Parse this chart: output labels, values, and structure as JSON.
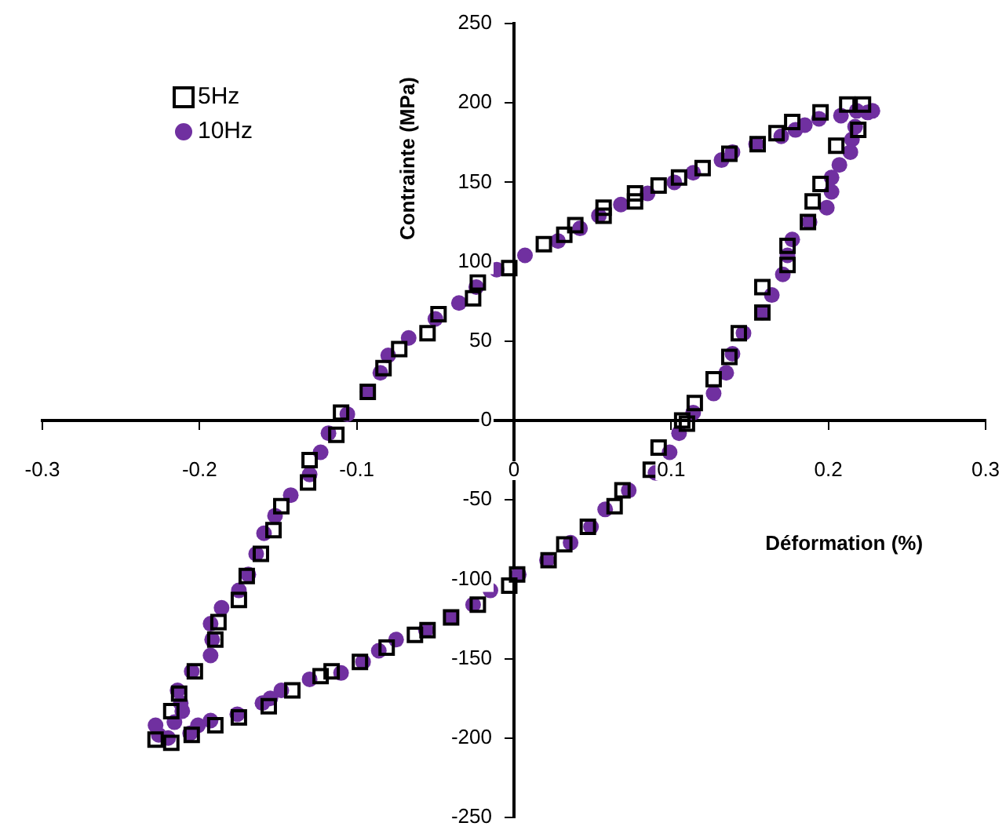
{
  "chart_data": {
    "type": "scatter",
    "xlabel": "Déformation (%)",
    "ylabel": "Contrainte (MPa)",
    "xlim": [
      -0.3,
      0.3
    ],
    "xticks": [
      -0.3,
      -0.2,
      -0.1,
      0,
      0.1,
      0.2,
      0.3
    ],
    "ylim": [
      -250,
      250
    ],
    "yticks": [
      -250,
      -200,
      -150,
      -100,
      -50,
      0,
      50,
      100,
      150,
      200,
      250
    ],
    "grid": false,
    "legend": "top left",
    "series": [
      {
        "name": "5Hz",
        "color": "#000000",
        "marker": "square",
        "x": [
          0.205,
          0.195,
          0.19,
          0.187,
          0.174,
          0.174,
          0.158,
          0.158,
          0.143,
          0.137,
          0.127,
          0.115,
          0.107,
          0.11,
          0.092,
          0.087,
          0.069,
          0.064,
          0.047,
          0.032,
          0.022,
          0.002,
          -0.003,
          -0.023,
          -0.04,
          -0.055,
          -0.063,
          -0.081,
          -0.098,
          -0.116,
          -0.123,
          -0.141,
          -0.156,
          -0.175,
          -0.19,
          -0.205,
          -0.218,
          -0.228,
          -0.218,
          -0.213,
          -0.203,
          -0.19,
          -0.188,
          -0.175,
          -0.17,
          -0.161,
          -0.153,
          -0.148,
          -0.131,
          -0.13,
          -0.113,
          -0.11,
          -0.093,
          -0.083,
          -0.073,
          -0.055,
          -0.048,
          -0.026,
          -0.023,
          -0.003,
          0.019,
          0.032,
          0.039,
          0.057,
          0.057,
          0.077,
          0.077,
          0.092,
          0.105,
          0.12,
          0.137,
          0.155,
          0.167,
          0.177,
          0.195,
          0.212,
          0.222,
          0.219
        ],
        "values": [
          173,
          149,
          138,
          125,
          110,
          98,
          84,
          68,
          55,
          40,
          26,
          11,
          0,
          -2,
          -17,
          -31,
          -44,
          -54,
          -67,
          -78,
          -88,
          -97,
          -104,
          -116,
          -124,
          -132,
          -135,
          -143,
          -152,
          -158,
          -161,
          -170,
          -180,
          -187,
          -192,
          -198,
          -203,
          -201,
          -183,
          -172,
          -158,
          -138,
          -127,
          -113,
          -98,
          -84,
          -69,
          -54,
          -39,
          -25,
          -9,
          5,
          18,
          33,
          45,
          55,
          67,
          77,
          87,
          96,
          111,
          117,
          123,
          129,
          134,
          138,
          143,
          148,
          153,
          159,
          168,
          174,
          181,
          188,
          194,
          199,
          199,
          183
        ]
      },
      {
        "name": "10Hz",
        "color": "#7030a0",
        "marker": "circle",
        "x": [
          0.225,
          0.217,
          0.215,
          0.214,
          0.207,
          0.202,
          0.202,
          0.199,
          0.188,
          0.177,
          0.174,
          0.171,
          0.164,
          0.158,
          0.146,
          0.139,
          0.135,
          0.127,
          0.114,
          0.105,
          0.099,
          0.09,
          0.073,
          0.058,
          0.049,
          0.036,
          0.021,
          0.003,
          -0.015,
          -0.026,
          -0.04,
          -0.056,
          -0.075,
          -0.086,
          -0.096,
          -0.11,
          -0.13,
          -0.148,
          -0.155,
          -0.16,
          -0.176,
          -0.193,
          -0.201,
          -0.206,
          -0.22,
          -0.226,
          -0.228,
          -0.216,
          -0.211,
          -0.212,
          -0.214,
          -0.205,
          -0.193,
          -0.192,
          -0.193,
          -0.186,
          -0.175,
          -0.169,
          -0.164,
          -0.159,
          -0.152,
          -0.142,
          -0.13,
          -0.123,
          -0.118,
          -0.106,
          -0.093,
          -0.085,
          -0.08,
          -0.067,
          -0.05,
          -0.035,
          -0.024,
          -0.011,
          0.007,
          0.028,
          0.042,
          0.054,
          0.068,
          0.085,
          0.102,
          0.114,
          0.132,
          0.139,
          0.154,
          0.17,
          0.179,
          0.185,
          0.194,
          0.208,
          0.218,
          0.228
        ],
        "values": [
          194,
          185,
          177,
          169,
          161,
          153,
          144,
          134,
          125,
          114,
          104,
          92,
          79,
          68,
          55,
          42,
          30,
          17,
          5,
          -8,
          -20,
          -33,
          -44,
          -56,
          -67,
          -77,
          -88,
          -97,
          -107,
          -116,
          -124,
          -132,
          -138,
          -145,
          -152,
          -159,
          -163,
          -170,
          -175,
          -178,
          -185,
          -189,
          -192,
          -197,
          -200,
          -198,
          -192,
          -190,
          -183,
          -178,
          -170,
          -158,
          -148,
          -138,
          -128,
          -118,
          -107,
          -97,
          -84,
          -71,
          -60,
          -47,
          -34,
          -20,
          -8,
          4,
          18,
          30,
          41,
          52,
          64,
          74,
          84,
          95,
          104,
          113,
          121,
          129,
          136,
          143,
          150,
          156,
          164,
          169,
          174,
          179,
          183,
          186,
          190,
          192,
          195,
          195
        ]
      }
    ]
  }
}
